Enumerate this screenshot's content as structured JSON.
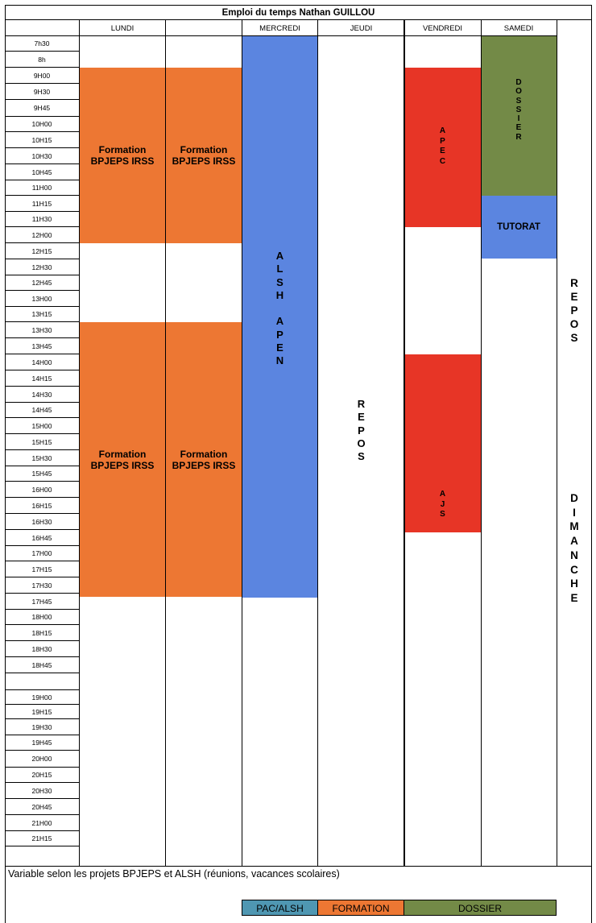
{
  "title": "Emploi du temps Nathan GUILLOU",
  "days": [
    "LUNDI",
    "MERCREDI",
    "JEUDI",
    "VENDREDI",
    "SAMEDI"
  ],
  "times": [
    "7h30",
    "8h",
    "9H00",
    "9H30",
    "9H45",
    "10H00",
    "10H15",
    "10H30",
    "10H45",
    "11H00",
    "11H15",
    "11H30",
    "12H00",
    "12H15",
    "12H30",
    "12H45",
    "13H00",
    "13H15",
    "13H30",
    "13H45",
    "14H00",
    "14H15",
    "14H30",
    "14H45",
    "15H00",
    "15H15",
    "15H30",
    "15H45",
    "16H00",
    "16H15",
    "16H30",
    "16H45",
    "17H00",
    "17H15",
    "17H30",
    "17H45",
    "18H00",
    "18H15",
    "18H30",
    "18H45",
    "",
    "19H00",
    "19H15",
    "19H30",
    "19H45",
    "20H00",
    "20H15",
    "20H30",
    "20H45",
    "21H00",
    "21H15"
  ],
  "blocks": {
    "formation_label": "Formation BPJEPS IRSS",
    "alsh": [
      "A",
      "L",
      "S",
      "H",
      "",
      "A",
      "P",
      "E",
      "N"
    ],
    "jeudi_repos": [
      "R",
      "E",
      "P",
      "O",
      "S"
    ],
    "apec": [
      "A",
      "P",
      "E",
      "C"
    ],
    "ajs": [
      "A",
      "J",
      "S"
    ],
    "dossier": [
      "D",
      "O",
      "S",
      "S",
      "I",
      "E",
      "R"
    ],
    "tutorat": "TUTORAT",
    "repos_right": [
      "R",
      "E",
      "P",
      "O",
      "S"
    ],
    "dimanche": [
      "D",
      "I",
      "M",
      "A",
      "N",
      "C",
      "H",
      "E"
    ]
  },
  "note": "Variable selon les projets BPJEPS et ALSH (réunions, vacances scolaires)",
  "legend": [
    {
      "label": "PAC/ALSH",
      "color": "#4f97b2"
    },
    {
      "label": "FORMATION",
      "color": "#ed7733"
    },
    {
      "label": "DOSSIER",
      "color": "#738a47"
    }
  ]
}
